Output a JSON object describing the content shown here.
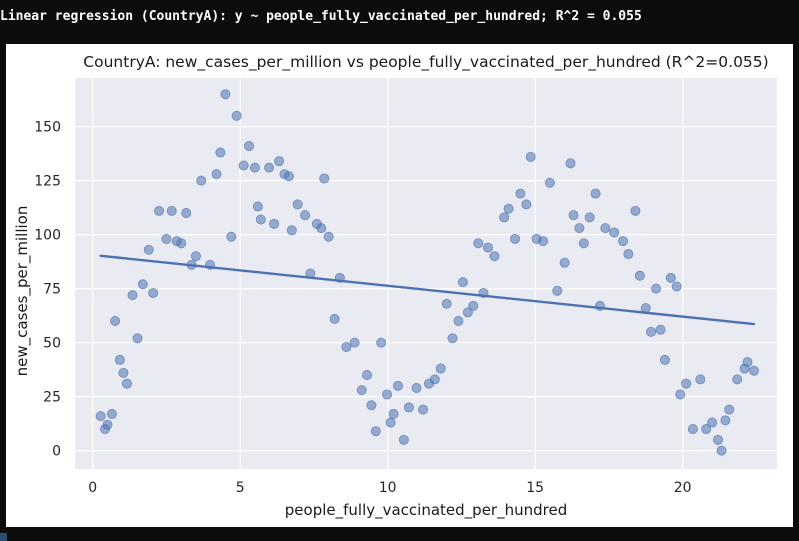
{
  "console": {
    "output_line": "Linear regression (CountryA): y ~ people_fully_vaccinated_per_hundred; R^2 = 0.055"
  },
  "colors": {
    "console_background": "#0c0c0c",
    "plot_background": "#eaeaf2",
    "grid": "#ffffff",
    "point": "#4c72b0",
    "regression_line": "#4c72b0"
  },
  "chart_data": {
    "type": "scatter",
    "title": "CountryA: new_cases_per_million vs people_fully_vaccinated_per_hundred (R^2=0.055)",
    "xlabel": "people_fully_vaccinated_per_hundred",
    "ylabel": "new_cases_per_million",
    "xlim": [
      -0.6,
      23.2
    ],
    "ylim": [
      -8.5,
      172.5
    ],
    "xticks": [
      0,
      5,
      10,
      15,
      20
    ],
    "yticks": [
      0,
      25,
      50,
      75,
      100,
      125,
      150
    ],
    "grid": true,
    "legend": "none",
    "points": [
      [
        0.27,
        16
      ],
      [
        0.42,
        10
      ],
      [
        0.5,
        12
      ],
      [
        0.65,
        17
      ],
      [
        0.76,
        60
      ],
      [
        0.92,
        42
      ],
      [
        1.04,
        36
      ],
      [
        1.16,
        31
      ],
      [
        1.35,
        72
      ],
      [
        1.52,
        52
      ],
      [
        1.7,
        77
      ],
      [
        1.9,
        93
      ],
      [
        2.05,
        73
      ],
      [
        2.25,
        111
      ],
      [
        2.5,
        98
      ],
      [
        2.68,
        111
      ],
      [
        2.85,
        97
      ],
      [
        3.0,
        96
      ],
      [
        3.17,
        110
      ],
      [
        3.35,
        86
      ],
      [
        3.5,
        90
      ],
      [
        3.68,
        125
      ],
      [
        3.98,
        86
      ],
      [
        4.2,
        128
      ],
      [
        4.33,
        138
      ],
      [
        4.5,
        165
      ],
      [
        4.7,
        99
      ],
      [
        4.88,
        155
      ],
      [
        5.12,
        132
      ],
      [
        5.3,
        141
      ],
      [
        5.5,
        131
      ],
      [
        5.6,
        113
      ],
      [
        5.7,
        107
      ],
      [
        5.98,
        131
      ],
      [
        6.15,
        105
      ],
      [
        6.32,
        134
      ],
      [
        6.5,
        128
      ],
      [
        6.65,
        127
      ],
      [
        6.75,
        102
      ],
      [
        6.95,
        114
      ],
      [
        7.2,
        109
      ],
      [
        7.38,
        82
      ],
      [
        7.6,
        105
      ],
      [
        7.75,
        103
      ],
      [
        7.85,
        126
      ],
      [
        8.0,
        99
      ],
      [
        8.2,
        61
      ],
      [
        8.38,
        80
      ],
      [
        8.6,
        48
      ],
      [
        8.88,
        50
      ],
      [
        9.12,
        28
      ],
      [
        9.3,
        35
      ],
      [
        9.45,
        21
      ],
      [
        9.6,
        9
      ],
      [
        9.78,
        50
      ],
      [
        9.98,
        26
      ],
      [
        10.1,
        13
      ],
      [
        10.2,
        17
      ],
      [
        10.35,
        30
      ],
      [
        10.55,
        5
      ],
      [
        10.72,
        20
      ],
      [
        10.98,
        29
      ],
      [
        11.2,
        19
      ],
      [
        11.4,
        31
      ],
      [
        11.6,
        33
      ],
      [
        11.8,
        38
      ],
      [
        12.0,
        68
      ],
      [
        12.2,
        52
      ],
      [
        12.4,
        60
      ],
      [
        12.55,
        78
      ],
      [
        12.72,
        64
      ],
      [
        12.9,
        67
      ],
      [
        13.07,
        96
      ],
      [
        13.25,
        73
      ],
      [
        13.4,
        94
      ],
      [
        13.62,
        90
      ],
      [
        13.95,
        108
      ],
      [
        14.1,
        112
      ],
      [
        14.32,
        98
      ],
      [
        14.5,
        119
      ],
      [
        14.7,
        114
      ],
      [
        14.85,
        136
      ],
      [
        15.05,
        98
      ],
      [
        15.27,
        97
      ],
      [
        15.5,
        124
      ],
      [
        15.75,
        74
      ],
      [
        16.0,
        87
      ],
      [
        16.2,
        133
      ],
      [
        16.3,
        109
      ],
      [
        16.5,
        103
      ],
      [
        16.65,
        96
      ],
      [
        16.85,
        108
      ],
      [
        17.05,
        119
      ],
      [
        17.2,
        67
      ],
      [
        17.38,
        103
      ],
      [
        17.68,
        101
      ],
      [
        17.98,
        97
      ],
      [
        18.16,
        91
      ],
      [
        18.4,
        111
      ],
      [
        18.55,
        81
      ],
      [
        18.75,
        66
      ],
      [
        18.93,
        55
      ],
      [
        19.1,
        75
      ],
      [
        19.25,
        56
      ],
      [
        19.4,
        42
      ],
      [
        19.6,
        80
      ],
      [
        19.8,
        76
      ],
      [
        19.92,
        26
      ],
      [
        20.12,
        31
      ],
      [
        20.35,
        10
      ],
      [
        20.6,
        33
      ],
      [
        20.8,
        10
      ],
      [
        21.0,
        13
      ],
      [
        21.2,
        5
      ],
      [
        21.32,
        0
      ],
      [
        21.45,
        14
      ],
      [
        21.58,
        19
      ],
      [
        21.85,
        33
      ],
      [
        22.1,
        38
      ],
      [
        22.2,
        41
      ],
      [
        22.42,
        37
      ]
    ],
    "regression_line": {
      "x": [
        0.27,
        22.42
      ],
      "y": [
        90.2,
        58.6
      ]
    }
  }
}
